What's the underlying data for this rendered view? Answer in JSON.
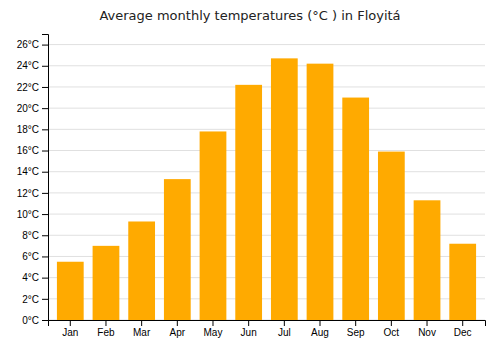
{
  "chart_data": {
    "type": "bar",
    "title": "Average monthly temperatures (°C ) in Floyitá",
    "categories": [
      "Jan",
      "Feb",
      "Mar",
      "Apr",
      "May",
      "Jun",
      "Jul",
      "Aug",
      "Sep",
      "Oct",
      "Nov",
      "Dec"
    ],
    "values": [
      5.5,
      7.0,
      9.3,
      13.3,
      17.8,
      22.2,
      24.7,
      24.2,
      21.0,
      15.9,
      11.3,
      7.2
    ],
    "color": "#FFAA00",
    "ylim": [
      0,
      27
    ],
    "yticks": [
      {
        "value": 0,
        "label": "0°C"
      },
      {
        "value": 2,
        "label": "2°C"
      },
      {
        "value": 4,
        "label": "4°C"
      },
      {
        "value": 6,
        "label": "6°C"
      },
      {
        "value": 8,
        "label": "8°C"
      },
      {
        "value": 10,
        "label": "10°C"
      },
      {
        "value": 12,
        "label": "12°C"
      },
      {
        "value": 14,
        "label": "14°C"
      },
      {
        "value": 16,
        "label": "16°C"
      },
      {
        "value": 18,
        "label": "18°C"
      },
      {
        "value": 20,
        "label": "20°C"
      },
      {
        "value": 22,
        "label": "22°C"
      },
      {
        "value": 24,
        "label": "24°C"
      },
      {
        "value": 26,
        "label": "26°C"
      }
    ],
    "grid": true
  }
}
